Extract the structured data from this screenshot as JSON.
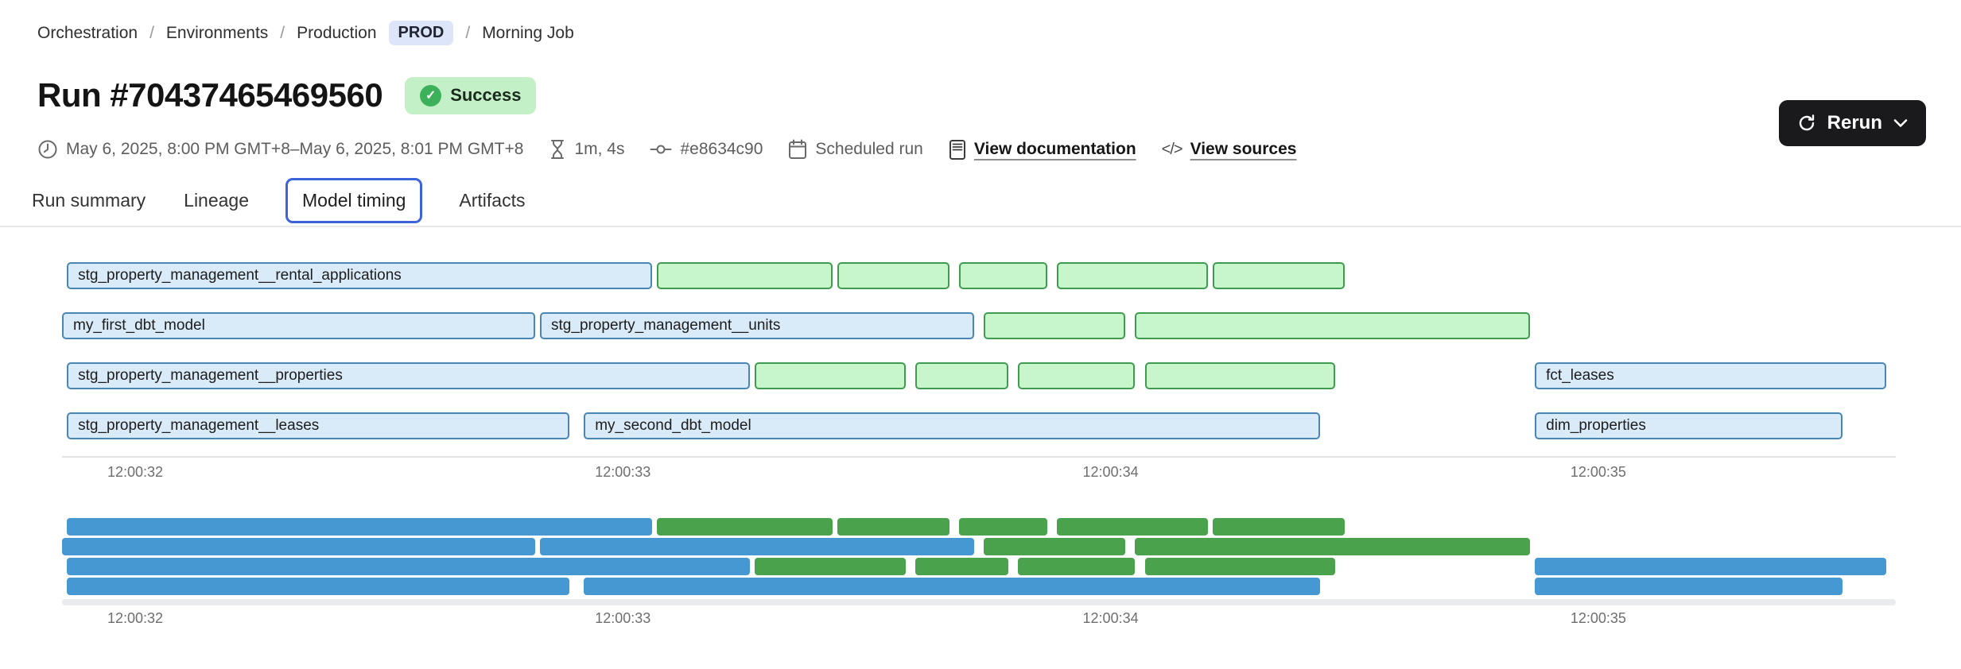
{
  "breadcrumb": {
    "items": [
      "Orchestration",
      "Environments",
      "Production",
      "Morning Job"
    ],
    "separator": "/",
    "badge": "PROD"
  },
  "header": {
    "title": "Run #70437465469560",
    "status": "Success",
    "status_check_glyph": "✓"
  },
  "meta": {
    "date_range": "May 6, 2025, 8:00 PM GMT+8–May 6, 2025, 8:01 PM GMT+8",
    "duration": "1m, 4s",
    "commit": "#e8634c90",
    "trigger": "Scheduled run",
    "doc_link": "View documentation",
    "sources_link": "View sources",
    "code_glyph": "</>"
  },
  "rerun": {
    "label": "Rerun"
  },
  "tabs": [
    {
      "label": "Run summary",
      "active": false
    },
    {
      "label": "Lineage",
      "active": false
    },
    {
      "label": "Model timing",
      "active": true
    },
    {
      "label": "Artifacts",
      "active": false
    }
  ],
  "colors": {
    "bar_blue_fill": "#d9eaf8",
    "bar_blue_border": "#4a86b4",
    "bar_green_fill": "#c7f6ca",
    "bar_green_border": "#3e9b4f",
    "mini_blue": "#4598d1",
    "mini_green": "#4aa24c",
    "success_bg": "#c3f0c6",
    "success_dot": "#3cb15a",
    "prod_badge_bg": "#dce5fa",
    "tab_active_border": "#3c62dc",
    "rerun_bg": "#1a1a1c"
  },
  "chart_data": {
    "type": "gantt",
    "title": "Model timing",
    "x_domain_seconds": [
      31.85,
      35.61
    ],
    "time_base": "12:00:00",
    "ticks": [
      {
        "t": 32,
        "label": "12:00:32"
      },
      {
        "t": 33,
        "label": "12:00:33"
      },
      {
        "t": 34,
        "label": "12:00:34"
      },
      {
        "t": 35,
        "label": "12:00:35"
      }
    ],
    "rows": [
      [
        {
          "label": "stg_property_management__rental_applications",
          "color": "blue",
          "start": 31.86,
          "end": 33.06
        },
        {
          "color": "green",
          "start": 33.07,
          "end": 33.43
        },
        {
          "color": "green",
          "start": 33.44,
          "end": 33.67
        },
        {
          "color": "green",
          "start": 33.69,
          "end": 33.87
        },
        {
          "color": "green",
          "start": 33.89,
          "end": 34.2
        },
        {
          "color": "green",
          "start": 34.21,
          "end": 34.48
        }
      ],
      [
        {
          "label": "my_first_dbt_model",
          "color": "blue",
          "start": 31.85,
          "end": 32.82
        },
        {
          "label": "stg_property_management__units",
          "color": "blue",
          "start": 32.83,
          "end": 33.72
        },
        {
          "color": "green",
          "start": 33.74,
          "end": 34.03
        },
        {
          "color": "green",
          "start": 34.05,
          "end": 34.86
        }
      ],
      [
        {
          "label": "stg_property_management__properties",
          "color": "blue",
          "start": 31.86,
          "end": 33.26
        },
        {
          "color": "green",
          "start": 33.27,
          "end": 33.58
        },
        {
          "color": "green",
          "start": 33.6,
          "end": 33.79
        },
        {
          "color": "green",
          "start": 33.81,
          "end": 34.05
        },
        {
          "color": "green",
          "start": 34.07,
          "end": 34.46
        },
        {
          "label": "fct_leases",
          "color": "blue",
          "start": 34.87,
          "end": 35.59
        }
      ],
      [
        {
          "label": "stg_property_management__leases",
          "color": "blue",
          "start": 31.86,
          "end": 32.89
        },
        {
          "label": "my_second_dbt_model",
          "color": "blue",
          "start": 32.92,
          "end": 34.43
        },
        {
          "label": "dim_properties",
          "color": "blue",
          "start": 34.87,
          "end": 35.5
        }
      ]
    ]
  }
}
